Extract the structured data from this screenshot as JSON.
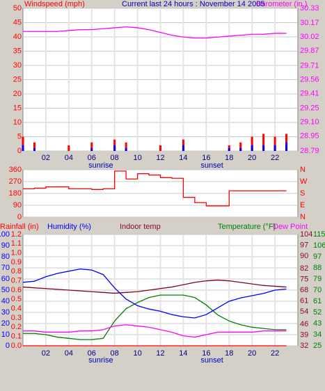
{
  "chart_data": [
    {
      "type": "line",
      "title": "Current last 24 hours : November 14 2005",
      "grid": true,
      "x": [
        0,
        1,
        2,
        3,
        4,
        5,
        6,
        7,
        8,
        9,
        10,
        11,
        12,
        13,
        14,
        15,
        16,
        17,
        18,
        19,
        20,
        21,
        22,
        23
      ],
      "xlim": [
        0,
        24
      ],
      "xticks": [
        {
          "value": 2,
          "label": "02"
        },
        {
          "value": 4,
          "label": "04"
        },
        {
          "value": 6,
          "label": "06"
        },
        {
          "value": 8,
          "label": "08"
        },
        10,
        12,
        14,
        16,
        18,
        20,
        22
      ],
      "annotations": [
        {
          "text": "sunrise",
          "x": 6.8
        },
        {
          "text": "sunset",
          "x": 16.5
        }
      ],
      "axes": [
        {
          "label": "Windspeed (mph)",
          "color": "#ff0000",
          "side": "left",
          "lim": [
            0,
            50
          ],
          "ticks": [
            0,
            5,
            10,
            15,
            20,
            25,
            30,
            35,
            40,
            45,
            50
          ]
        },
        {
          "label": "Barometer (in.)",
          "color": "#ff00ff",
          "side": "right",
          "lim": [
            28.79,
            30.33
          ],
          "ticks": [
            28.79,
            28.95,
            {
              "value": 29.1,
              "label": "29.10"
            },
            29.25,
            29.41,
            29.56,
            29.71,
            29.87,
            30.02,
            30.17,
            30.33
          ]
        }
      ],
      "series": [
        {
          "type": "bar",
          "axis": 0,
          "color": "#ff0000",
          "values": [
            5,
            3,
            0,
            0,
            2,
            0,
            3,
            0,
            4,
            3,
            0,
            0,
            2,
            0,
            4,
            0,
            0,
            0,
            2,
            3,
            5,
            6,
            5,
            6
          ]
        },
        {
          "type": "bar",
          "axis": 0,
          "color": "#0000ff",
          "values": [
            2,
            1,
            0,
            0,
            0,
            0,
            1,
            0,
            2,
            1,
            0,
            0,
            0,
            0,
            2,
            0,
            0,
            0,
            1,
            1,
            2,
            2,
            2,
            3
          ]
        },
        {
          "type": "line",
          "axis": 1,
          "color": "#ff00ff",
          "values": [
            30.08,
            30.08,
            30.08,
            30.08,
            30.09,
            30.1,
            30.1,
            30.11,
            30.12,
            30.13,
            30.12,
            30.1,
            30.07,
            30.04,
            30.02,
            30.01,
            30.01,
            30.02,
            30.03,
            30.04,
            30.05,
            30.05,
            30.06,
            30.06
          ]
        }
      ]
    },
    {
      "type": "line",
      "grid": true,
      "x": [
        0,
        1,
        2,
        3,
        4,
        5,
        6,
        7,
        8,
        9,
        10,
        11,
        12,
        13,
        14,
        15,
        16,
        17,
        18,
        19,
        20,
        21,
        22,
        23
      ],
      "xlim": [
        0,
        24
      ],
      "axes": [
        {
          "color": "#ff0000",
          "side": "left",
          "lim": [
            0,
            360
          ],
          "ticks": [
            0,
            90,
            180,
            270,
            360
          ]
        },
        {
          "color": "#ff0000",
          "side": "right",
          "lim": [
            0,
            360
          ],
          "ticks": [
            {
              "value": 0,
              "label": "N"
            },
            {
              "value": 90,
              "label": "E"
            },
            {
              "value": 180,
              "label": "S"
            },
            {
              "value": 270,
              "label": "W"
            },
            {
              "value": 360,
              "label": "N"
            }
          ]
        }
      ],
      "series": [
        {
          "type": "step",
          "axis": 0,
          "color": "#ff0000",
          "values": [
            215,
            220,
            230,
            230,
            215,
            215,
            210,
            215,
            350,
            290,
            330,
            320,
            300,
            295,
            150,
            110,
            85,
            85,
            200,
            200,
            200,
            200,
            200,
            200
          ]
        }
      ]
    },
    {
      "type": "line",
      "grid": true,
      "x": [
        0,
        1,
        2,
        3,
        4,
        5,
        6,
        7,
        8,
        9,
        10,
        11,
        12,
        13,
        14,
        15,
        16,
        17,
        18,
        19,
        20,
        21,
        22,
        23
      ],
      "xlim": [
        0,
        24
      ],
      "xticks": [
        {
          "value": 2,
          "label": "02"
        },
        {
          "value": 4,
          "label": "04"
        },
        {
          "value": 6,
          "label": "06"
        },
        {
          "value": 8,
          "label": "08"
        },
        10,
        12,
        14,
        16,
        18,
        20,
        22
      ],
      "annotations": [
        {
          "text": "sunrise",
          "x": 6.8
        },
        {
          "text": "sunset",
          "x": 16.5
        }
      ],
      "axes": [
        {
          "label": "Humidity (%)",
          "color": "#0000ff",
          "side": "left",
          "lim": [
            0,
            100
          ],
          "ticks": [
            0,
            10,
            20,
            30,
            40,
            50,
            60,
            70,
            80,
            90,
            100
          ]
        },
        {
          "label": "Rainfall (in)",
          "color": "#ff0000",
          "side": "left",
          "lim": [
            0,
            1.2
          ],
          "ticks": [
            {
              "value": 0,
              "label": "0.0"
            },
            0.1,
            0.2,
            0.3,
            0.4,
            0.5,
            0.6,
            0.7,
            0.8,
            0.9,
            {
              "value": 1,
              "label": "1.0"
            },
            1.1,
            1.2
          ]
        },
        {
          "label": "Indoor temp",
          "color": "#8b0a2a",
          "side": "right",
          "lim": [
            32,
            104
          ],
          "ticks": [
            32,
            39,
            46,
            54,
            61,
            68,
            75,
            82,
            90,
            97,
            104
          ]
        },
        {
          "label": "Temperature (°F)",
          "color": "#008000",
          "side": "right",
          "lim": [
            25,
            115
          ],
          "ticks": [
            25,
            34,
            43,
            52,
            61,
            70,
            79,
            88,
            97,
            106,
            115
          ]
        }
      ],
      "series": [
        {
          "type": "line",
          "axis": 1,
          "color": "#ff0000",
          "values": [
            0,
            0,
            0,
            0,
            0,
            0,
            0,
            0,
            0,
            0,
            0,
            0,
            0,
            0,
            0,
            0,
            0,
            0,
            0,
            0,
            0,
            0,
            0,
            0
          ]
        },
        {
          "type": "line",
          "axis": 2,
          "color": "#800020",
          "values": [
            70,
            69.5,
            69,
            68.5,
            68,
            67.5,
            67,
            66.5,
            66,
            66.5,
            67,
            68,
            69,
            70,
            71.5,
            73,
            74,
            74.5,
            74,
            73,
            72,
            71,
            70.5,
            70
          ]
        },
        {
          "type": "line",
          "axis": 3,
          "color": "#008000",
          "values": [
            35,
            35,
            34,
            32,
            31,
            30,
            30,
            31,
            45,
            55,
            60,
            64,
            66,
            66,
            66,
            64,
            58,
            50,
            45,
            42,
            40,
            39,
            38,
            38
          ]
        },
        {
          "type": "line",
          "axis": 0,
          "color": "#0000ff",
          "values": [
            57,
            58,
            62,
            65,
            67,
            69,
            68,
            64,
            52,
            42,
            36,
            33,
            31,
            28,
            26,
            25,
            28,
            34,
            40,
            43,
            45,
            47,
            50,
            51
          ]
        },
        {
          "type": "line",
          "axis": 3,
          "name": "Dew Point",
          "color": "#ff00ff",
          "values": [
            37,
            37,
            36,
            36,
            36,
            37,
            37,
            38,
            41,
            42,
            41,
            40,
            38,
            36,
            33,
            32,
            34,
            36,
            36,
            36,
            36,
            37,
            37,
            37
          ]
        }
      ]
    }
  ]
}
